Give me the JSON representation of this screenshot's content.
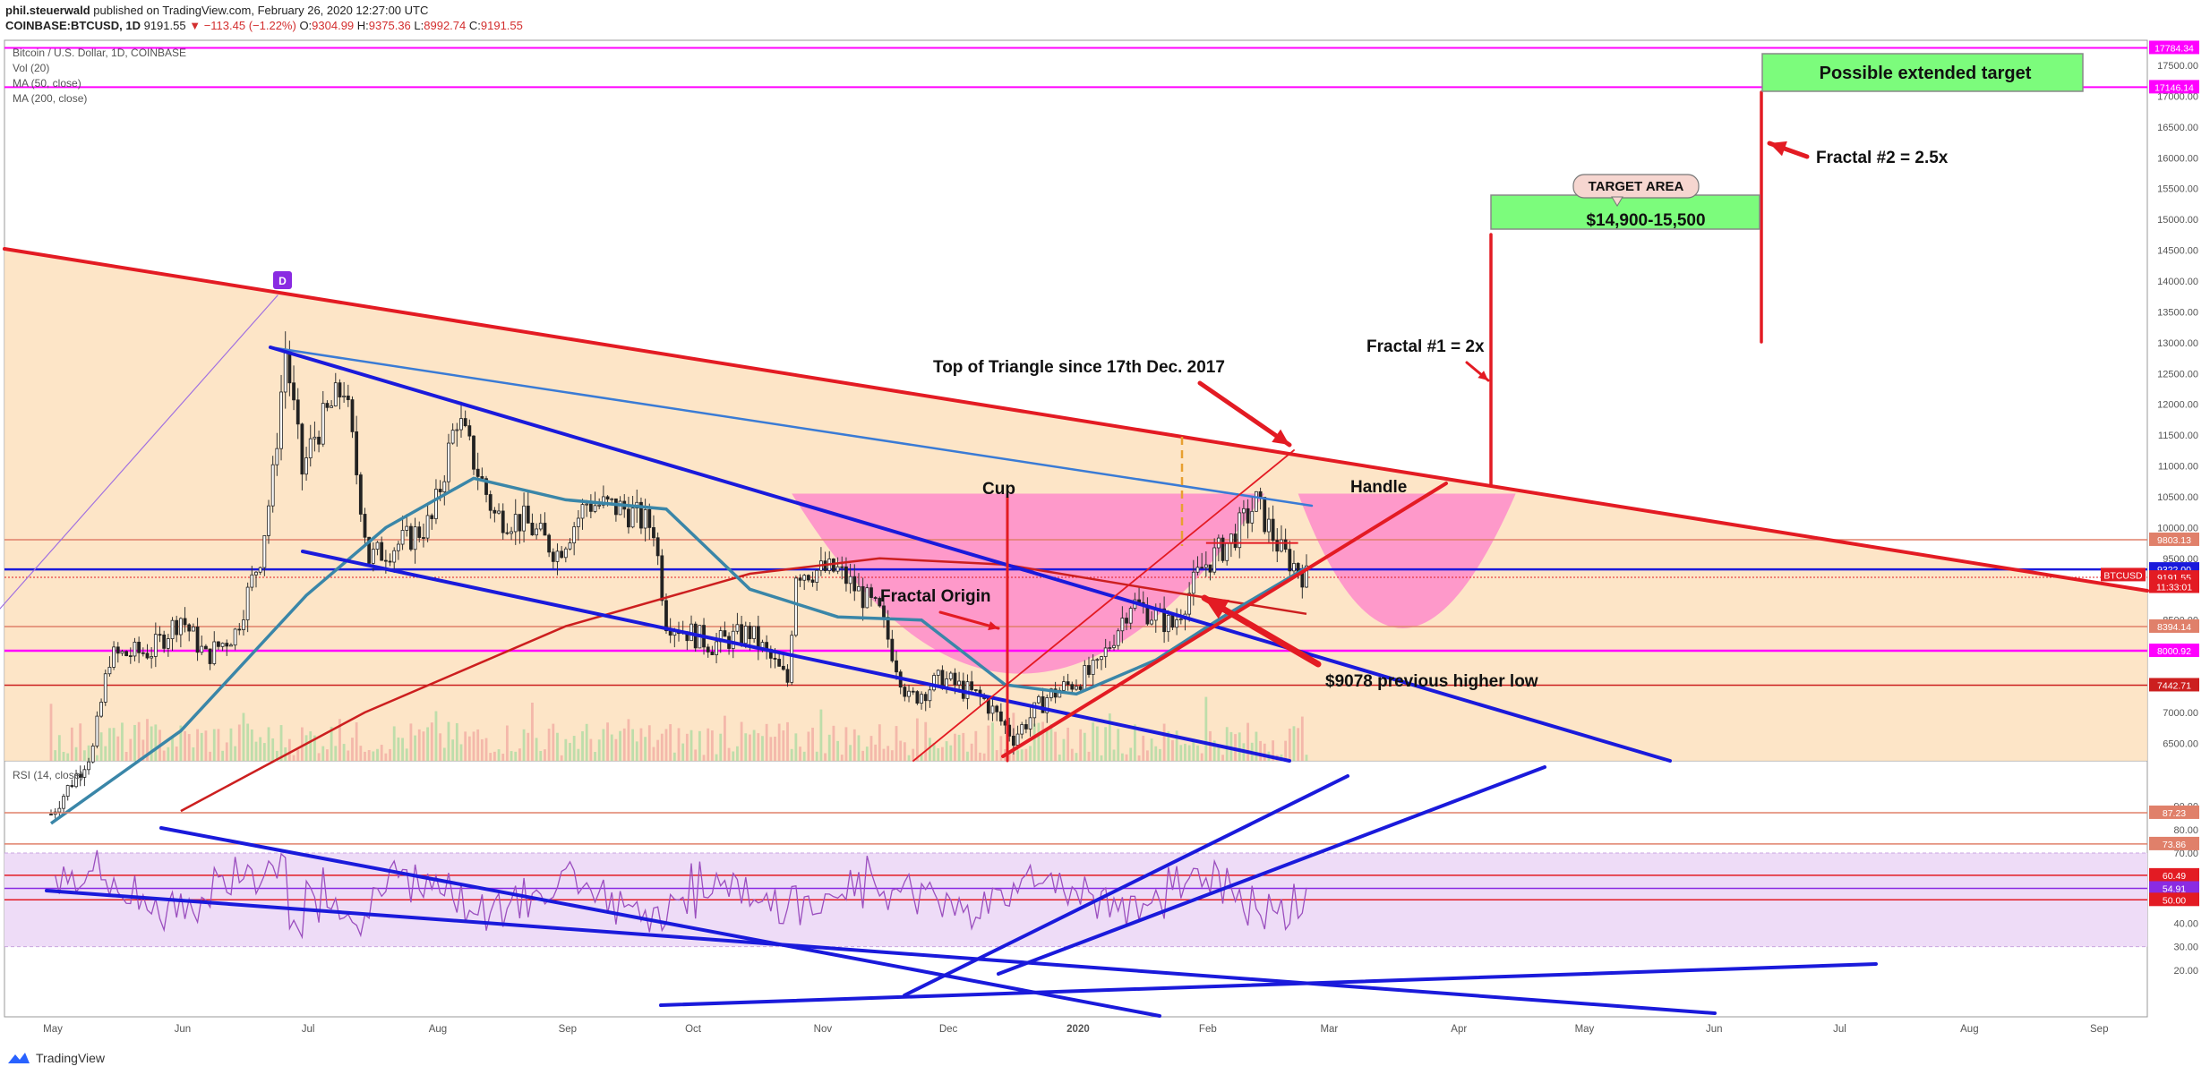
{
  "header": {
    "author": "phil.steuerwald",
    "published": "published on TradingView.com, February 26, 2020 12:27:00 UTC",
    "symbol": "COINBASE:BTCUSD, 1D",
    "last": "9191.55",
    "change": "▼ −113.45 (−1.22%)",
    "o_label": "O:",
    "o": "9304.99",
    "h_label": "H:",
    "h": "9375.36",
    "l_label": "L:",
    "l": "8992.74",
    "c_label": "C:",
    "c": "9191.55"
  },
  "indicators": {
    "title": "Bitcoin / U.S. Dollar, 1D, COINBASE",
    "vol": "Vol (20)",
    "ma50": "MA (50, close)",
    "ma200": "MA (200, close)",
    "rsi": "RSI (14, close)"
  },
  "footer": {
    "brand": "TradingView"
  },
  "colors": {
    "red": "#e31b23",
    "blue": "#1a1adb",
    "magenta": "#ff00ff",
    "pink_fill": "#ff66cc",
    "triangle_fill": "#fde0bd",
    "rsi_band": "#eedcf7",
    "green": "#7cfc7c",
    "ma50": "#3a86a8",
    "ma200": "#cc1f1f"
  },
  "chart_data": {
    "type": "candlestick",
    "x_axis_labels": [
      "May",
      "Jun",
      "Jul",
      "Aug",
      "Sep",
      "Oct",
      "Nov",
      "Dec",
      "2020",
      "Feb",
      "Mar",
      "Apr",
      "May",
      "Jun",
      "Jul",
      "Aug",
      "Sep"
    ],
    "price_axis_ticks": [
      6500,
      7000,
      7500,
      8000,
      8500,
      9000,
      9500,
      10000,
      10500,
      11000,
      11500,
      12000,
      12500,
      13000,
      13500,
      14000,
      14500,
      15000,
      15500,
      16000,
      16500,
      17000,
      17500
    ],
    "rsi_axis_ticks": [
      20,
      30,
      40,
      50,
      60,
      70,
      80
    ],
    "rsi_axis_ticks_top": [
      "90.00"
    ],
    "price_tags": [
      {
        "label": "17784.34",
        "color": "#ff00ff"
      },
      {
        "label": "17146.14",
        "color": "#ff00ff"
      },
      {
        "label": "9803.13",
        "color": "#e0806a"
      },
      {
        "label": "9322.00",
        "color": "#1a1adb"
      },
      {
        "label": "BTCUSD",
        "color": "#e31b23"
      },
      {
        "label": "9191.55",
        "color": "#e31b23"
      },
      {
        "label": "11:33:01",
        "color": "#e31b23"
      },
      {
        "label": "8394.14",
        "color": "#e0806a"
      },
      {
        "label": "8000.92",
        "color": "#ff00ff"
      },
      {
        "label": "7442.71",
        "color": "#cc1f1f"
      }
    ],
    "rsi_tags": [
      {
        "label": "87.23",
        "color": "#e0806a"
      },
      {
        "label": "73.86",
        "color": "#e0806a"
      },
      {
        "label": "60.49",
        "color": "#e31b23"
      },
      {
        "label": "54.91",
        "color": "#8a2be2"
      },
      {
        "label": "50.00",
        "color": "#e31b23"
      }
    ],
    "horizontal_levels": [
      17784.34,
      17146.14,
      9803.13,
      9322.0,
      8394.14,
      8000.92,
      7442.71
    ],
    "rsi_levels": [
      87.23,
      73.86,
      60.49,
      54.91,
      50.0
    ],
    "price_series": [
      [
        "2019-05-01",
        5350
      ],
      [
        "2019-05-11",
        6400
      ],
      [
        "2019-05-15",
        7900
      ],
      [
        "2019-05-25",
        8000
      ],
      [
        "2019-06-01",
        8550
      ],
      [
        "2019-06-07",
        7900
      ],
      [
        "2019-06-14",
        8300
      ],
      [
        "2019-06-20",
        9550
      ],
      [
        "2019-06-23",
        10800
      ],
      [
        "2019-06-26",
        12900
      ],
      [
        "2019-06-30",
        10900
      ],
      [
        "2019-07-03",
        11500
      ],
      [
        "2019-07-10",
        12300
      ],
      [
        "2019-07-16",
        9500
      ],
      [
        "2019-07-25",
        9800
      ],
      [
        "2019-07-31",
        10100
      ],
      [
        "2019-08-06",
        11800
      ],
      [
        "2019-08-15",
        10200
      ],
      [
        "2019-08-22",
        10100
      ],
      [
        "2019-08-30",
        9600
      ],
      [
        "2019-09-06",
        10400
      ],
      [
        "2019-09-15",
        10300
      ],
      [
        "2019-09-22",
        10000
      ],
      [
        "2019-09-25",
        8500
      ],
      [
        "2019-10-06",
        8100
      ],
      [
        "2019-10-15",
        8300
      ],
      [
        "2019-10-24",
        7500
      ],
      [
        "2019-10-26",
        9300
      ],
      [
        "2019-11-05",
        9300
      ],
      [
        "2019-11-15",
        8600
      ],
      [
        "2019-11-22",
        7200
      ],
      [
        "2019-11-30",
        7550
      ],
      [
        "2019-12-10",
        7200
      ],
      [
        "2019-12-17",
        6600
      ],
      [
        "2019-12-25",
        7250
      ],
      [
        "2020-01-06",
        7700
      ],
      [
        "2020-01-14",
        8800
      ],
      [
        "2020-01-24",
        8400
      ],
      [
        "2020-01-31",
        9350
      ],
      [
        "2020-02-07",
        9800
      ],
      [
        "2020-02-13",
        10400
      ],
      [
        "2020-02-19",
        9600
      ],
      [
        "2020-02-25",
        9191.55
      ]
    ],
    "ma50_series": [
      [
        "2019-05-01",
        5200
      ],
      [
        "2019-06-01",
        6700
      ],
      [
        "2019-07-01",
        8900
      ],
      [
        "2019-07-20",
        10000
      ],
      [
        "2019-08-10",
        10800
      ],
      [
        "2019-09-01",
        10450
      ],
      [
        "2019-09-25",
        10300
      ],
      [
        "2019-10-15",
        9000
      ],
      [
        "2019-11-05",
        8550
      ],
      [
        "2019-11-25",
        8500
      ],
      [
        "2019-12-15",
        7450
      ],
      [
        "2020-01-01",
        7300
      ],
      [
        "2020-01-20",
        7850
      ],
      [
        "2020-02-05",
        8550
      ],
      [
        "2020-02-25",
        9350
      ]
    ],
    "ma200_series": [
      [
        "2019-06-01",
        5400
      ],
      [
        "2019-07-15",
        7000
      ],
      [
        "2019-09-01",
        8400
      ],
      [
        "2019-10-15",
        9250
      ],
      [
        "2019-11-15",
        9500
      ],
      [
        "2019-12-15",
        9400
      ],
      [
        "2020-01-15",
        9050
      ],
      [
        "2020-02-25",
        8600
      ]
    ],
    "annotations": [
      {
        "text": "Top of Triangle since 17th Dec. 2017"
      },
      {
        "text": "Cup"
      },
      {
        "text": "Handle"
      },
      {
        "text": "Fractal Origin"
      },
      {
        "text": "$9078 previous higher low"
      },
      {
        "text": "Fractal #1 = 2x"
      },
      {
        "text": "Fractal #2 = 2.5x"
      },
      {
        "text": "TARGET AREA"
      },
      {
        "text": "$14,900-15,500"
      },
      {
        "text": "Possible extended target"
      },
      {
        "text": "D"
      }
    ]
  }
}
